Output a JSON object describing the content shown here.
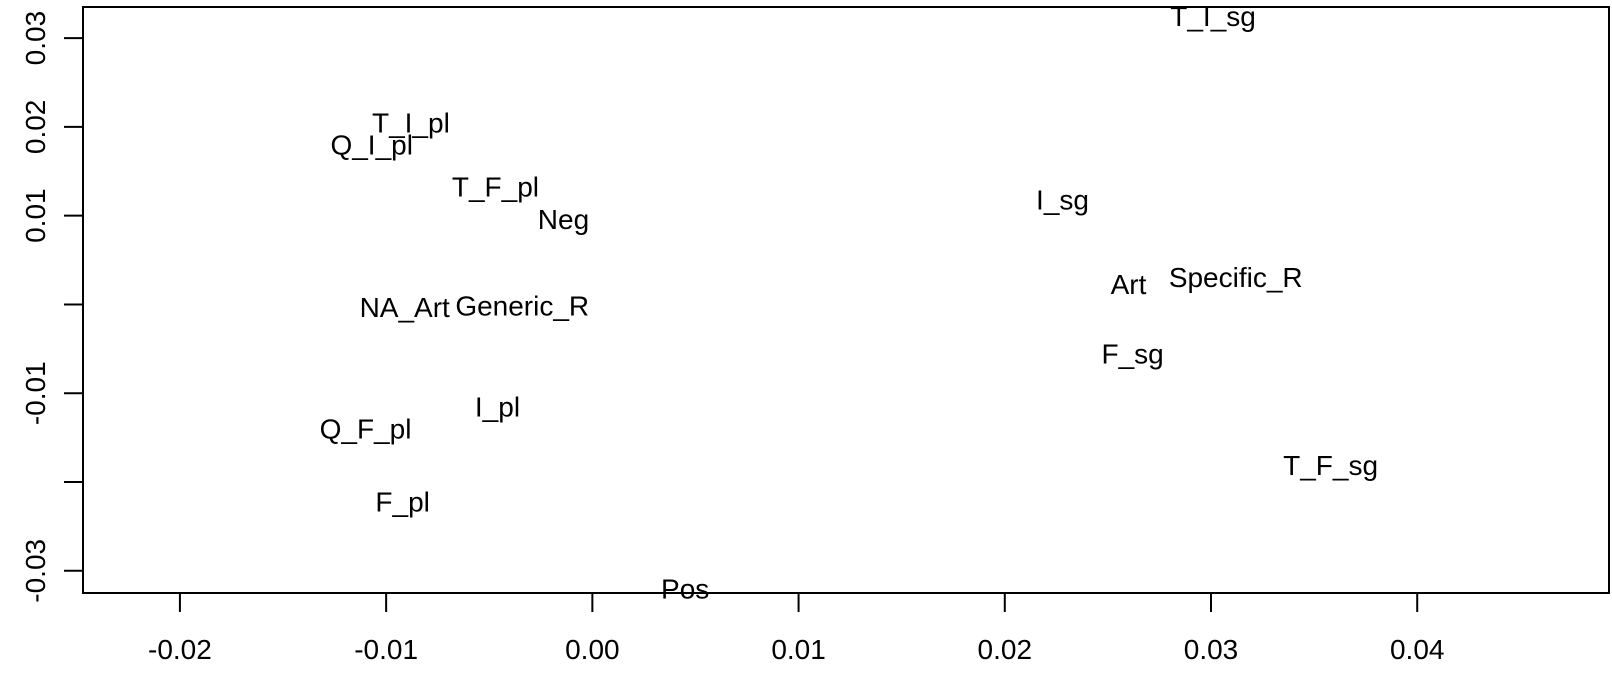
{
  "chart_data": {
    "type": "scatter",
    "title": "",
    "xlabel": "",
    "ylabel": "",
    "xlim": [
      -0.0247,
      0.0493
    ],
    "ylim": [
      -0.0325,
      0.0335
    ],
    "grid": false,
    "x_ticks": [
      {
        "value": -0.02,
        "label": "-0.02"
      },
      {
        "value": -0.01,
        "label": "-0.01"
      },
      {
        "value": 0.0,
        "label": "0.00"
      },
      {
        "value": 0.01,
        "label": "0.01"
      },
      {
        "value": 0.02,
        "label": "0.02"
      },
      {
        "value": 0.03,
        "label": "0.03"
      },
      {
        "value": 0.04,
        "label": "0.04"
      }
    ],
    "y_ticks": [
      {
        "value": -0.03,
        "label": "-0.03"
      },
      {
        "value": -0.02,
        "label": ""
      },
      {
        "value": -0.01,
        "label": "-0.01"
      },
      {
        "value": 0.0,
        "label": ""
      },
      {
        "value": 0.01,
        "label": "0.01"
      },
      {
        "value": 0.02,
        "label": "0.02"
      },
      {
        "value": 0.03,
        "label": "0.03"
      }
    ],
    "points": [
      {
        "label": "T_I_sg",
        "x": 0.0301,
        "y": 0.0325
      },
      {
        "label": "T_I_pl",
        "x": -0.0088,
        "y": 0.0205
      },
      {
        "label": "Q_I_pl",
        "x": -0.0107,
        "y": 0.018
      },
      {
        "label": "T_F_pl",
        "x": -0.0047,
        "y": 0.0133
      },
      {
        "label": "Neg",
        "x": -0.0014,
        "y": 0.0096
      },
      {
        "label": "I_sg",
        "x": 0.0228,
        "y": 0.0118
      },
      {
        "label": "Art",
        "x": 0.026,
        "y": 0.0023
      },
      {
        "label": "Specific_R",
        "x": 0.0312,
        "y": 0.0031
      },
      {
        "label": "NA_Art",
        "x": -0.0091,
        "y": -0.0003
      },
      {
        "label": "Generic_R",
        "x": -0.0034,
        "y": -0.0001
      },
      {
        "label": "F_sg",
        "x": 0.0262,
        "y": -0.0055
      },
      {
        "label": "I_pl",
        "x": -0.0046,
        "y": -0.0115
      },
      {
        "label": "Q_F_pl",
        "x": -0.011,
        "y": -0.014
      },
      {
        "label": "T_F_sg",
        "x": 0.0358,
        "y": -0.0181
      },
      {
        "label": "F_pl",
        "x": -0.0092,
        "y": -0.0222
      },
      {
        "label": "Pos",
        "x": 0.0045,
        "y": -0.032
      }
    ]
  }
}
